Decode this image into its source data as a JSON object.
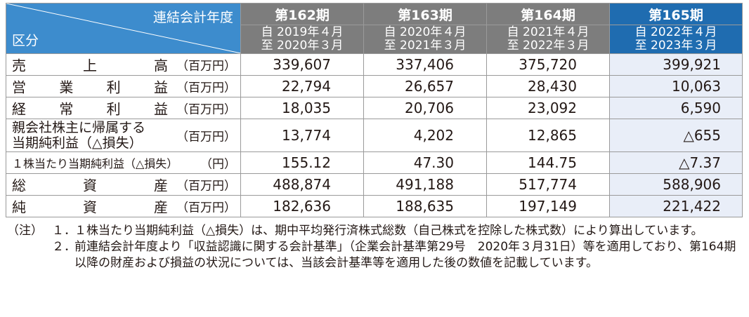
{
  "header": {
    "corner_top": "連結会計年度",
    "corner_bottom": "区分",
    "periods": [
      {
        "name": "第162期",
        "from": "自 2019年４月",
        "to": "至 2020年３月"
      },
      {
        "name": "第163期",
        "from": "自 2020年４月",
        "to": "至 2021年３月"
      },
      {
        "name": "第164期",
        "from": "自 2021年４月",
        "to": "至 2022年３月"
      },
      {
        "name": "第165期",
        "from": "自 2022年４月",
        "to": "至 2023年３月"
      }
    ]
  },
  "rows": [
    {
      "chars": [
        "売",
        "上",
        "高"
      ],
      "unit": "（百万円）",
      "values": [
        "339,607",
        "337,406",
        "375,720",
        "399,921"
      ]
    },
    {
      "chars": [
        "営",
        "業",
        "利",
        "益"
      ],
      "unit": "（百万円）",
      "values": [
        "22,794",
        "26,657",
        "28,430",
        "10,063"
      ]
    },
    {
      "chars": [
        "経",
        "常",
        "利",
        "益"
      ],
      "unit": "（百万円）",
      "values": [
        "18,035",
        "20,706",
        "23,092",
        "6,590"
      ]
    },
    {
      "line1": "親会社株主に帰属する",
      "line2": "当期純利益（△損失）",
      "unit": "（百万円）",
      "values": [
        "13,774",
        "4,202",
        "12,865",
        "△655"
      ]
    },
    {
      "label": "１株当たり当期純利益（△損失）",
      "unit": "（円）",
      "values": [
        "155.12",
        "47.30",
        "144.75",
        "△7.37"
      ]
    },
    {
      "chars": [
        "総",
        "資",
        "産"
      ],
      "unit": "（百万円）",
      "values": [
        "488,874",
        "491,188",
        "517,774",
        "588,906"
      ]
    },
    {
      "chars": [
        "純",
        "資",
        "産"
      ],
      "unit": "（百万円）",
      "values": [
        "182,636",
        "188,635",
        "197,149",
        "221,422"
      ]
    }
  ],
  "notes": {
    "prefix": "（注）",
    "items": [
      {
        "num": "１．",
        "text": "１株当たり当期純利益（△損失）は、期中平均発行済株式総数（自己株式を控除した株式数）により算出しています。"
      },
      {
        "num": "２．",
        "text": "前連結会計年度より「収益認識に関する会計基準」（企業会計基準第29号　2020年３月31日）等を適用しており、第164期以降の財産および損益の状況については、当該会計基準等を適用した後の数値を記載しています。"
      }
    ]
  },
  "colors": {
    "corner": "#3d8ccd",
    "period_gray": "#7d7d7d",
    "period_current": "#1f6cb0",
    "current_col_bg": "#e9eef8"
  }
}
